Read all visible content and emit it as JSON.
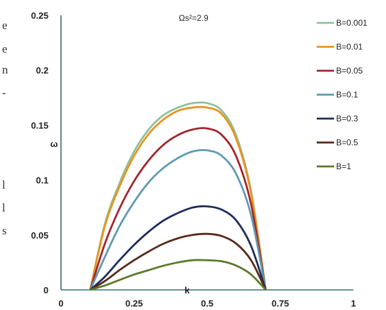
{
  "chart_data": {
    "type": "line",
    "annotation": "Ωs²=2.9",
    "xlabel": "k",
    "ylabel": "ω",
    "xlim": [
      0,
      1
    ],
    "ylim": [
      0,
      0.25
    ],
    "x_ticks": [
      "0",
      "0.25",
      "0.5",
      "0.75",
      "1"
    ],
    "y_ticks": [
      "0",
      "0.05",
      "0.1",
      "0.15",
      "0.2",
      "0.25"
    ],
    "grid": false,
    "legend_position": "right",
    "x": [
      0.1,
      0.15,
      0.2,
      0.25,
      0.3,
      0.35,
      0.4,
      0.45,
      0.5,
      0.55,
      0.6,
      0.65,
      0.7
    ],
    "series": [
      {
        "name": "B=0.001",
        "color": "#8fc0a0",
        "values": [
          0,
          0.06,
          0.097,
          0.126,
          0.146,
          0.159,
          0.166,
          0.17,
          0.17,
          0.163,
          0.14,
          0.09,
          0
        ]
      },
      {
        "name": "B=0.01",
        "color": "#e8951d",
        "values": [
          0,
          0.058,
          0.094,
          0.122,
          0.142,
          0.155,
          0.163,
          0.166,
          0.166,
          0.16,
          0.137,
          0.088,
          0
        ]
      },
      {
        "name": "B=0.05",
        "color": "#a3242c",
        "values": [
          0,
          0.042,
          0.074,
          0.099,
          0.118,
          0.132,
          0.141,
          0.146,
          0.147,
          0.141,
          0.121,
          0.078,
          0
        ]
      },
      {
        "name": "B=0.1",
        "color": "#5f9ab2",
        "values": [
          0,
          0.03,
          0.058,
          0.08,
          0.098,
          0.111,
          0.12,
          0.126,
          0.127,
          0.122,
          0.105,
          0.068,
          0
        ]
      },
      {
        "name": "B=0.3",
        "color": "#1f2e5a",
        "values": [
          0,
          0.012,
          0.027,
          0.041,
          0.053,
          0.063,
          0.07,
          0.075,
          0.076,
          0.073,
          0.063,
          0.04,
          0
        ]
      },
      {
        "name": "B=0.5",
        "color": "#5a2a1a",
        "values": [
          0,
          0.008,
          0.018,
          0.027,
          0.035,
          0.042,
          0.047,
          0.05,
          0.051,
          0.049,
          0.042,
          0.027,
          0
        ]
      },
      {
        "name": "B=1",
        "color": "#5b7a2a",
        "values": [
          0,
          0.004,
          0.009,
          0.014,
          0.018,
          0.022,
          0.025,
          0.027,
          0.027,
          0.026,
          0.022,
          0.014,
          0
        ]
      }
    ]
  },
  "edge_text": [
    "e",
    "e",
    "n",
    "-",
    "l",
    "l",
    "s"
  ]
}
